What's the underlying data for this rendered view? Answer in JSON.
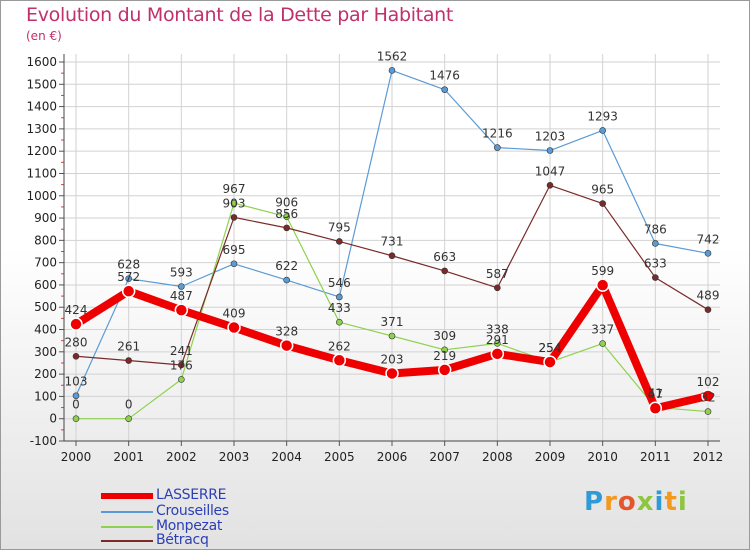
{
  "title": "Evolution du Montant de la Dette par Habitant",
  "subtitle": "(en €)",
  "logo": {
    "text": "Proxiti",
    "colors": [
      "#2e9ad6",
      "#f39a1e",
      "#e4572e",
      "#8dc63f",
      "#2e9ad6",
      "#f39a1e",
      "#8dc63f"
    ]
  },
  "chart_data": {
    "type": "line",
    "x": [
      "2000",
      "2001",
      "2002",
      "2003",
      "2004",
      "2005",
      "2006",
      "2007",
      "2008",
      "2009",
      "2010",
      "2011",
      "2012"
    ],
    "ylim": [
      -100,
      1600
    ],
    "yticks": [
      -100,
      0,
      100,
      200,
      300,
      400,
      500,
      600,
      700,
      800,
      900,
      1000,
      1100,
      1200,
      1300,
      1400,
      1500,
      1600
    ],
    "grid": true,
    "legend_position": "bottom-left",
    "series": [
      {
        "name": "LASSERRE",
        "color": "#ee0000",
        "values": [
          424,
          572,
          487,
          409,
          328,
          262,
          203,
          219,
          291,
          254,
          599,
          47,
          102
        ],
        "labels": [
          "424",
          "572",
          "487",
          "409",
          "328",
          "262",
          "203",
          "219",
          "291",
          "254",
          "599",
          "47",
          "102"
        ]
      },
      {
        "name": "Crouseilles",
        "color": "#5b9bd5",
        "values": [
          103,
          628,
          593,
          695,
          622,
          546,
          1562,
          1476,
          1216,
          1203,
          1293,
          786,
          742
        ],
        "labels": [
          "103",
          "628",
          "593",
          "695",
          "622",
          "546",
          "1562",
          "1476",
          "1216",
          "1203",
          "1293",
          "786",
          "742"
        ]
      },
      {
        "name": "Monpezat",
        "color": "#8fd14f",
        "values": [
          0,
          0,
          176,
          967,
          906,
          433,
          371,
          309,
          338,
          254,
          337,
          51,
          32
        ],
        "labels": [
          "0",
          "0",
          "176",
          "967",
          "906",
          "433",
          "371",
          "309",
          "338",
          "254",
          "337",
          "51",
          "32"
        ]
      },
      {
        "name": "Bétracq",
        "color": "#7a2a2a",
        "values": [
          280,
          261,
          241,
          903,
          856,
          795,
          731,
          663,
          587,
          1047,
          965,
          633,
          489
        ],
        "labels": [
          "280",
          "261",
          "241",
          "903",
          "856",
          "795",
          "731",
          "663",
          "587",
          "1047",
          "965",
          "633",
          "489"
        ]
      }
    ]
  }
}
